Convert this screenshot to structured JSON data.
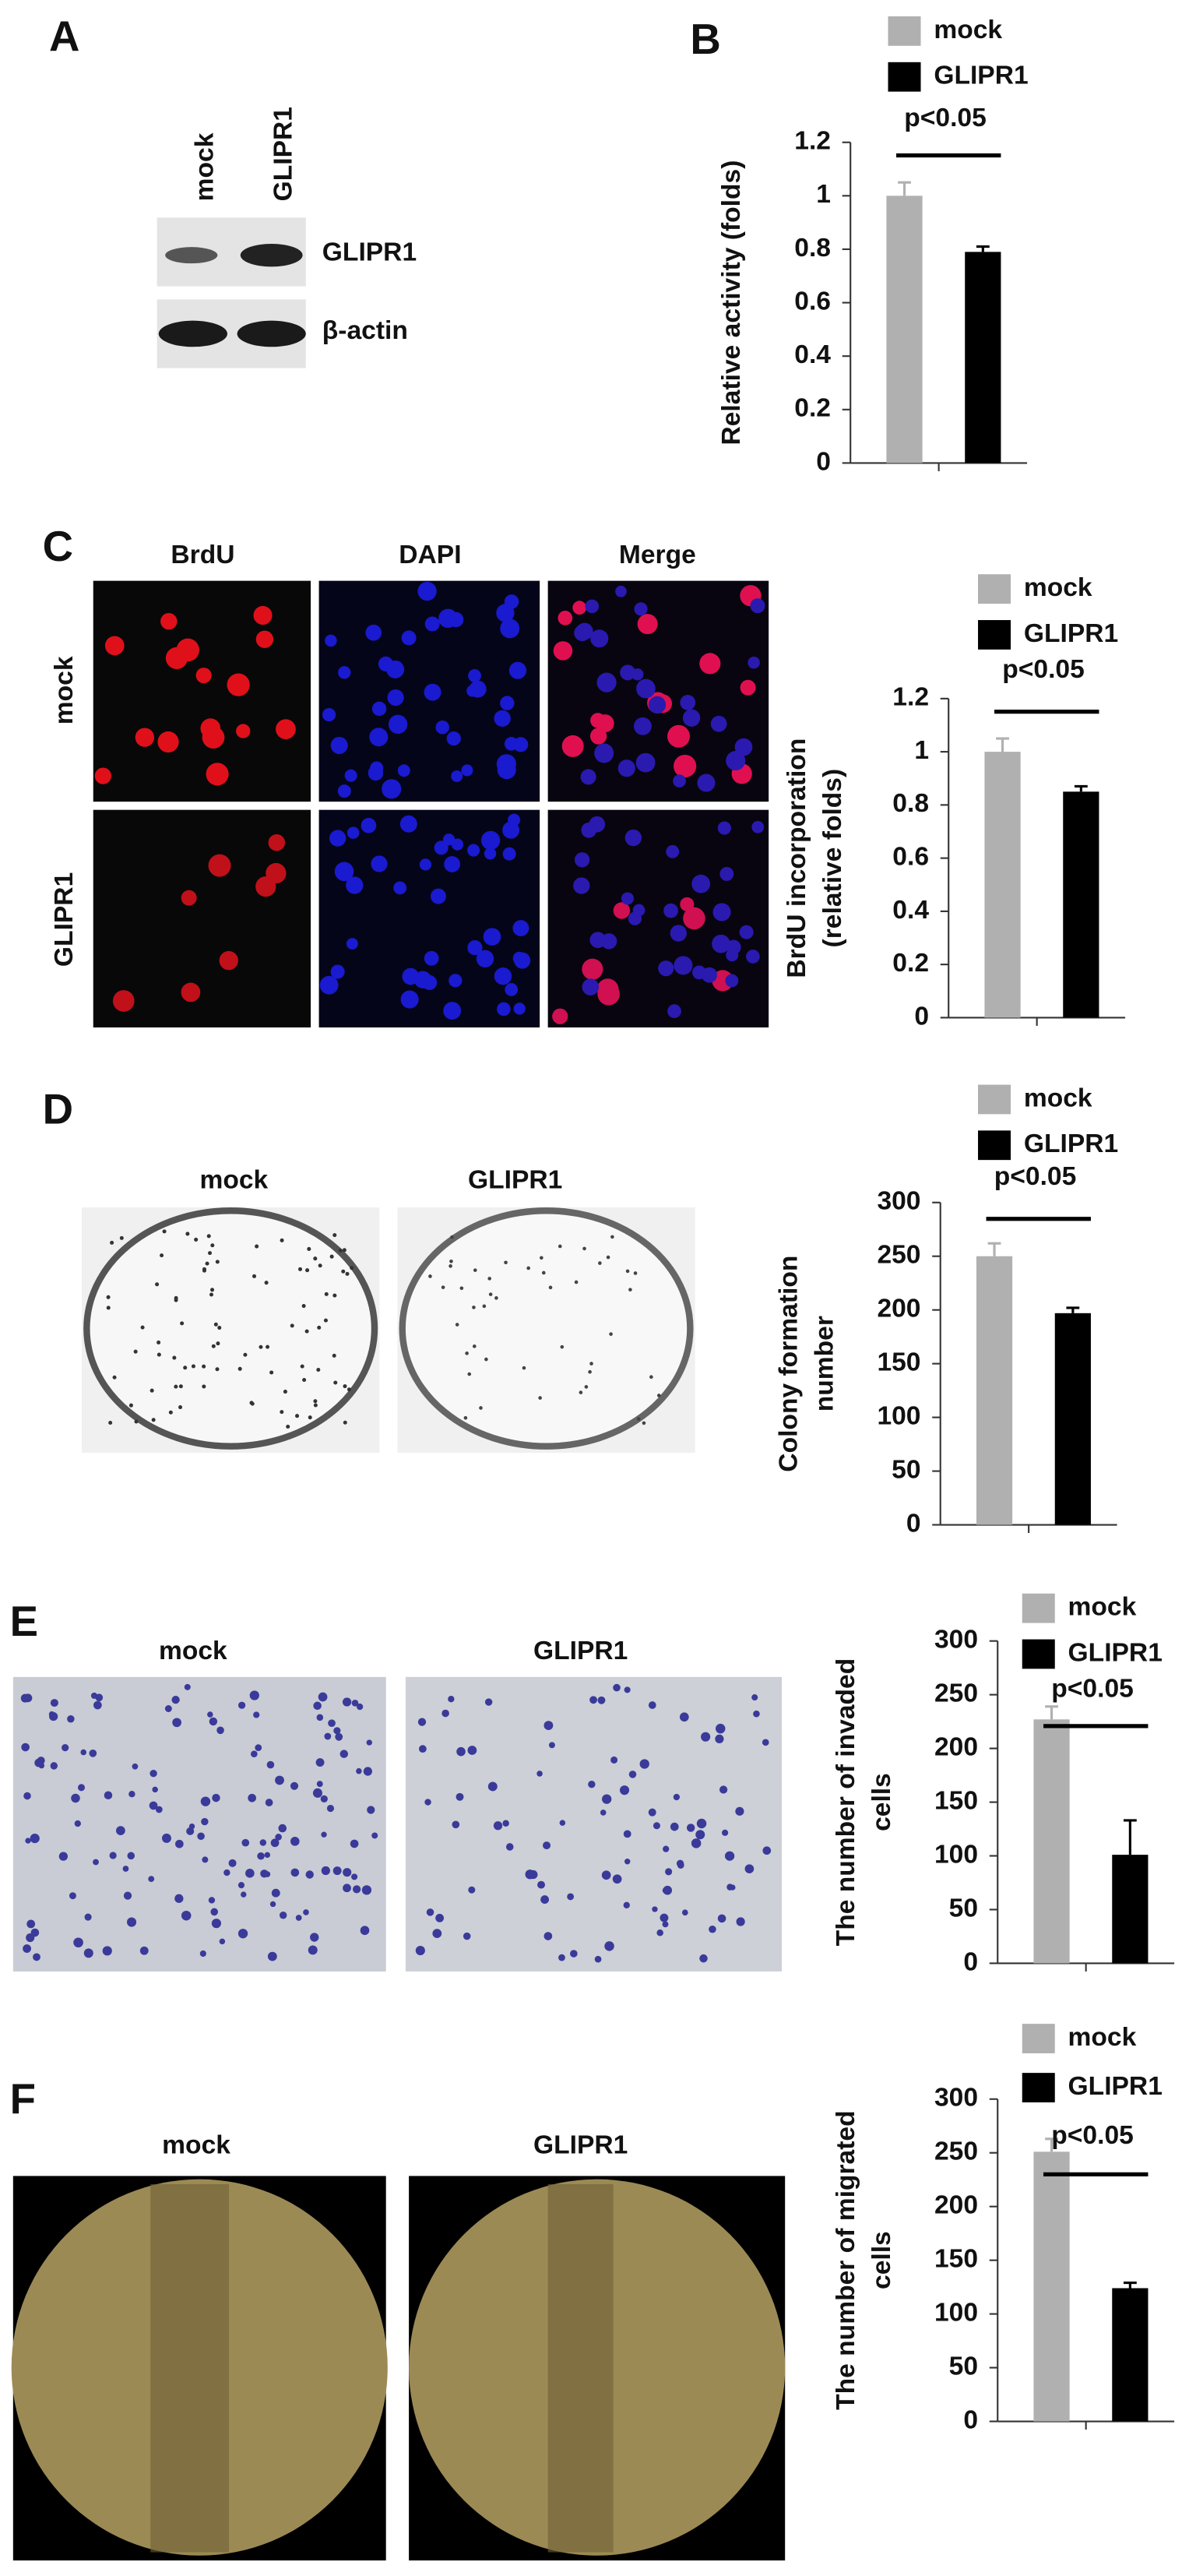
{
  "panels": {
    "A": {
      "label": "A",
      "lanes": [
        "mock",
        "GLIPR1"
      ],
      "bands": [
        "GLIPR1",
        "β-actin"
      ]
    },
    "B": {
      "label": "B"
    },
    "C": {
      "label": "C",
      "columns": [
        "BrdU",
        "DAPI",
        "Merge"
      ],
      "rows": [
        "mock",
        "GLIPR1"
      ]
    },
    "D": {
      "label": "D",
      "images": [
        "mock",
        "GLIPR1"
      ]
    },
    "E": {
      "label": "E",
      "images": [
        "mock",
        "GLIPR1"
      ]
    },
    "F": {
      "label": "F",
      "images": [
        "mock",
        "GLIPR1"
      ]
    }
  },
  "chart_data": [
    {
      "type": "bar",
      "ylabel": [
        "Relative activity (folds)"
      ],
      "annotation": "p<0.05",
      "categories": [
        null
      ],
      "series": [
        {
          "name": "mock",
          "color": "#b0b0b0",
          "values": [
            1.0
          ],
          "errors": [
            0.05
          ]
        },
        {
          "name": "GLIPR1",
          "color": "#000000",
          "values": [
            0.79
          ],
          "errors": [
            0.02
          ]
        }
      ],
      "ylim": [
        0,
        1.2
      ],
      "yticks": [
        0,
        0.2,
        0.4,
        0.6,
        0.8,
        1,
        1.2
      ]
    },
    {
      "type": "bar",
      "ylabel": [
        "BrdU  incorporation",
        "(relative folds)"
      ],
      "annotation": "p<0.05",
      "categories": [
        null
      ],
      "series": [
        {
          "name": "mock",
          "color": "#b0b0b0",
          "values": [
            1.0
          ],
          "errors": [
            0.05
          ]
        },
        {
          "name": "GLIPR1",
          "color": "#000000",
          "values": [
            0.85
          ],
          "errors": [
            0.02
          ]
        }
      ],
      "ylim": [
        0,
        1.2
      ],
      "yticks": [
        0,
        0.2,
        0.4,
        0.6,
        0.8,
        1,
        1.2
      ]
    },
    {
      "type": "bar",
      "ylabel": [
        "Colony formation",
        "number"
      ],
      "annotation": "p<0.05",
      "categories": [
        null
      ],
      "series": [
        {
          "name": "mock",
          "color": "#b0b0b0",
          "values": [
            250
          ],
          "errors": [
            12
          ]
        },
        {
          "name": "GLIPR1",
          "color": "#000000",
          "values": [
            197
          ],
          "errors": [
            5
          ]
        }
      ],
      "ylim": [
        0,
        300
      ],
      "yticks": [
        0,
        50,
        100,
        150,
        200,
        250,
        300
      ]
    },
    {
      "type": "bar",
      "ylabel": [
        "The number of invaded",
        "cells"
      ],
      "annotation": "p<0.05",
      "categories": [
        null
      ],
      "series": [
        {
          "name": "mock",
          "color": "#b0b0b0",
          "values": [
            227
          ],
          "errors": [
            12
          ]
        },
        {
          "name": "GLIPR1",
          "color": "#000000",
          "values": [
            101
          ],
          "errors": [
            32
          ]
        }
      ],
      "ylim": [
        0,
        300
      ],
      "yticks": [
        0,
        50,
        100,
        150,
        200,
        250,
        300
      ]
    },
    {
      "type": "bar",
      "ylabel": [
        "The number of migrated",
        "cells"
      ],
      "annotation": "p<0.05",
      "categories": [
        null
      ],
      "series": [
        {
          "name": "mock",
          "color": "#b0b0b0",
          "values": [
            251
          ],
          "errors": [
            12
          ]
        },
        {
          "name": "GLIPR1",
          "color": "#000000",
          "values": [
            124
          ],
          "errors": [
            5
          ]
        }
      ],
      "ylim": [
        0,
        300
      ],
      "yticks": [
        0,
        50,
        100,
        150,
        200,
        250,
        300
      ]
    }
  ]
}
